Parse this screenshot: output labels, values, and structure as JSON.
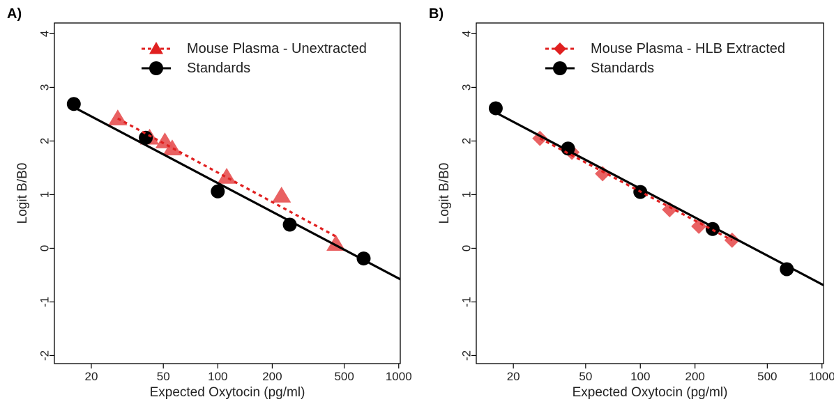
{
  "chart_data": [
    {
      "type": "scatter",
      "panel_label": "A)",
      "xlabel": "Expected Oxytocin (pg/ml)",
      "ylabel": "Logit B/B0",
      "xscale": "log",
      "xticks": [
        20,
        50,
        100,
        200,
        500,
        1000
      ],
      "xtick_labels": [
        "20",
        "50",
        "100",
        "200",
        "500",
        "1000"
      ],
      "yticks": [
        -2,
        -1,
        0,
        1,
        2,
        3,
        4
      ],
      "ytick_labels": [
        "-2",
        "-1",
        "0",
        "1",
        "2",
        "3",
        "4"
      ],
      "xlim": [
        12.5,
        1020
      ],
      "ylim": [
        -2.15,
        4.2
      ],
      "grid": false,
      "legend_position": "top-right",
      "series": [
        {
          "name": "Mouse Plasma - Unextracted",
          "marker": "triangle",
          "color": "#e8595a",
          "line_color": "#e02020",
          "line_style": "dotted",
          "points": [
            {
              "x": 28,
              "y": 2.42
            },
            {
              "x": 42,
              "y": 2.06
            },
            {
              "x": 51,
              "y": 1.99
            },
            {
              "x": 56,
              "y": 1.86
            },
            {
              "x": 112,
              "y": 1.33
            },
            {
              "x": 225,
              "y": 0.98
            },
            {
              "x": 450,
              "y": 0.08
            }
          ],
          "fit": [
            [
              28,
              2.42
            ],
            [
              450,
              0.22
            ]
          ]
        },
        {
          "name": "Standards",
          "marker": "circle",
          "color": "#000000",
          "line_color": "#000000",
          "line_style": "solid",
          "points": [
            {
              "x": 16,
              "y": 2.69
            },
            {
              "x": 40,
              "y": 2.06
            },
            {
              "x": 100,
              "y": 1.06
            },
            {
              "x": 250,
              "y": 0.44
            },
            {
              "x": 640,
              "y": -0.19
            }
          ],
          "fit": [
            [
              16,
              2.63
            ],
            [
              1050,
              -0.6
            ]
          ]
        }
      ]
    },
    {
      "type": "scatter",
      "panel_label": "B)",
      "xlabel": "Expected Oxytocin (pg/ml)",
      "ylabel": "Logit B/B0",
      "xscale": "log",
      "xticks": [
        20,
        50,
        100,
        200,
        500,
        1000
      ],
      "xtick_labels": [
        "20",
        "50",
        "100",
        "200",
        "500",
        "1000"
      ],
      "yticks": [
        -2,
        -1,
        0,
        1,
        2,
        3,
        4
      ],
      "ytick_labels": [
        "-2",
        "-1",
        "0",
        "1",
        "2",
        "3",
        "4"
      ],
      "xlim": [
        12.5,
        1020
      ],
      "ylim": [
        -2.15,
        4.2
      ],
      "grid": false,
      "legend_position": "top-right",
      "series": [
        {
          "name": "Mouse Plasma - HLB Extracted",
          "marker": "diamond",
          "color": "#e8595a",
          "line_color": "#e02020",
          "line_style": "dotted",
          "points": [
            {
              "x": 28,
              "y": 2.05
            },
            {
              "x": 42,
              "y": 1.79
            },
            {
              "x": 62,
              "y": 1.39
            },
            {
              "x": 145,
              "y": 0.72
            },
            {
              "x": 210,
              "y": 0.41
            },
            {
              "x": 320,
              "y": 0.15
            }
          ],
          "fit": [
            [
              28,
              2.05
            ],
            [
              320,
              0.15
            ]
          ]
        },
        {
          "name": "Standards",
          "marker": "circle",
          "color": "#000000",
          "line_color": "#000000",
          "line_style": "solid",
          "points": [
            {
              "x": 16,
              "y": 2.61
            },
            {
              "x": 40,
              "y": 1.86
            },
            {
              "x": 100,
              "y": 1.05
            },
            {
              "x": 250,
              "y": 0.36
            },
            {
              "x": 640,
              "y": -0.39
            }
          ],
          "fit": [
            [
              16,
              2.53
            ],
            [
              1050,
              -0.71
            ]
          ]
        }
      ]
    }
  ]
}
